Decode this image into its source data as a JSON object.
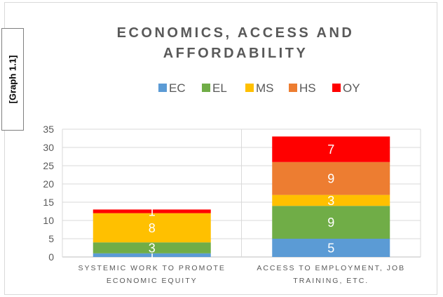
{
  "side_tab": {
    "label": "[Graph 1.1]"
  },
  "chart_data": {
    "type": "bar",
    "stacked": true,
    "title": "ECONOMICS, ACCESS AND AFFORDABILITY",
    "title_lines": [
      "ECONOMICS, ACCESS AND",
      "AFFORDABILITY"
    ],
    "categories": [
      "SYSTEMIC WORK TO PROMOTE ECONOMIC EQUITY",
      "ACCESS TO EMPLOYMENT, JOB TRAINING, ETC."
    ],
    "category_lines": [
      [
        "SYSTEMIC WORK TO PROMOTE",
        "ECONOMIC EQUITY"
      ],
      [
        "ACCESS TO EMPLOYMENT, JOB",
        "TRAINING, ETC."
      ]
    ],
    "series": [
      {
        "name": "EC",
        "color": "#5b9bd5",
        "values": [
          1,
          5
        ]
      },
      {
        "name": "EL",
        "color": "#70ad47",
        "values": [
          3,
          9
        ]
      },
      {
        "name": "MS",
        "color": "#ffc000",
        "values": [
          8,
          3
        ]
      },
      {
        "name": "HS",
        "color": "#ed7d31",
        "values": [
          0,
          9
        ]
      },
      {
        "name": "OY",
        "color": "#ff0000",
        "values": [
          1,
          7
        ]
      }
    ],
    "data_labels": [
      [
        "1",
        "3",
        "8",
        "",
        "1"
      ],
      [
        "5",
        "9",
        "3",
        "9",
        "7"
      ]
    ],
    "ylim": [
      0,
      35
    ],
    "yticks": [
      0,
      5,
      10,
      15,
      20,
      25,
      30,
      35
    ],
    "grid": true,
    "legend_position": "top"
  }
}
